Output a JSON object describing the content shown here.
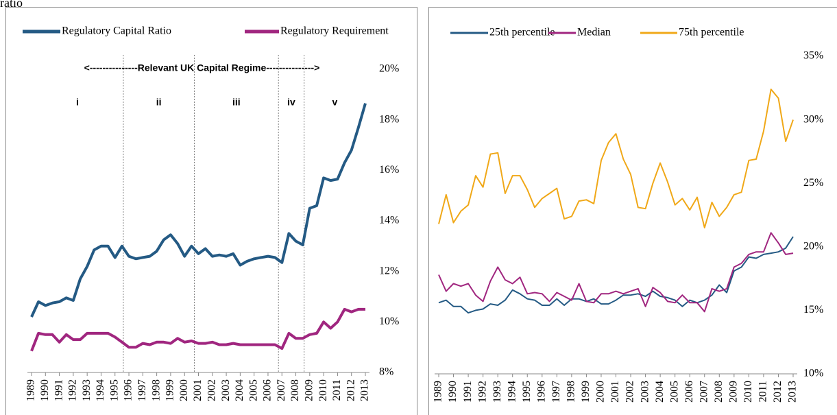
{
  "header": "ratio",
  "chart_data": [
    {
      "type": "line",
      "annotation": "<---------------Relevant UK Capital Regime--------------->",
      "regimes": [
        "i",
        "ii",
        "iii",
        "iv",
        "v"
      ],
      "dividers": [
        13.2,
        23.4,
        35.5,
        39.2
      ],
      "categories": [
        "1989",
        null,
        "1990",
        null,
        "1991",
        null,
        "1992",
        null,
        "1993",
        null,
        "1994",
        null,
        "1995",
        null,
        "1996",
        null,
        "1997",
        null,
        "1998",
        null,
        "1999",
        null,
        "2000",
        null,
        "2001",
        null,
        "2002",
        null,
        "2003",
        null,
        "2004",
        null,
        "2005",
        null,
        "2006",
        null,
        "2007",
        null,
        "2008",
        null,
        "2009",
        null,
        "2010",
        null,
        "2011",
        null,
        "2012",
        null,
        "2013"
      ],
      "series": [
        {
          "name": "Regulatory Capital Ratio",
          "color": "#245a84",
          "width": 4,
          "values": [
            10.2,
            10.8,
            10.65,
            10.75,
            10.8,
            10.95,
            10.85,
            11.7,
            12.2,
            12.85,
            13.0,
            13.0,
            12.55,
            13.0,
            12.6,
            12.5,
            12.55,
            12.6,
            12.8,
            13.25,
            13.45,
            13.1,
            12.6,
            13.0,
            12.7,
            12.9,
            12.6,
            12.65,
            12.6,
            12.7,
            12.25,
            12.4,
            12.5,
            12.55,
            12.6,
            12.55,
            12.35,
            13.5,
            13.2,
            13.05,
            14.5,
            14.6,
            15.7,
            15.6,
            15.65,
            16.3,
            16.8,
            17.7,
            18.65
          ]
        },
        {
          "name": "Regulatory Requirement",
          "color": "#a0267f",
          "width": 4,
          "values": [
            8.85,
            9.55,
            9.5,
            9.5,
            9.2,
            9.5,
            9.3,
            9.3,
            9.55,
            9.55,
            9.55,
            9.55,
            9.4,
            9.2,
            9.0,
            9.0,
            9.15,
            9.1,
            9.2,
            9.2,
            9.15,
            9.35,
            9.2,
            9.25,
            9.15,
            9.15,
            9.2,
            9.1,
            9.1,
            9.15,
            9.1,
            9.1,
            9.1,
            9.1,
            9.1,
            9.1,
            8.95,
            9.55,
            9.35,
            9.35,
            9.5,
            9.55,
            10.0,
            9.75,
            10.0,
            10.5,
            10.4,
            10.5,
            10.5
          ]
        }
      ],
      "ylim": [
        8,
        20
      ],
      "yticks": [
        {
          "value": 8,
          "label": "8%"
        },
        {
          "value": 10,
          "label": "10%"
        },
        {
          "value": 12,
          "label": "12%"
        },
        {
          "value": 14,
          "label": "14%"
        },
        {
          "value": 16,
          "label": "16%"
        },
        {
          "value": 18,
          "label": "18%"
        },
        {
          "value": 20,
          "label": "20%"
        }
      ]
    },
    {
      "type": "line",
      "categories": [
        "1989",
        null,
        "1990",
        null,
        "1991",
        null,
        "1992",
        null,
        "1993",
        null,
        "1994",
        null,
        "1995",
        null,
        "1996",
        null,
        "1997",
        null,
        "1998",
        null,
        "1999",
        null,
        "2000",
        null,
        "2001",
        null,
        "2002",
        null,
        "2003",
        null,
        "2004",
        null,
        "2005",
        null,
        "2006",
        null,
        "2007",
        null,
        "2008",
        null,
        "2009",
        null,
        "2010",
        null,
        "2011",
        null,
        "2012",
        null,
        "2013"
      ],
      "series": [
        {
          "name": "25th percentile",
          "color": "#245a84",
          "width": 2,
          "values": [
            15.6,
            15.8,
            15.3,
            15.3,
            14.8,
            15.0,
            15.1,
            15.5,
            15.4,
            15.8,
            16.6,
            16.3,
            15.9,
            15.8,
            15.4,
            15.4,
            15.9,
            15.4,
            15.9,
            15.9,
            15.7,
            15.9,
            15.5,
            15.5,
            15.8,
            16.2,
            16.2,
            16.3,
            16.1,
            16.5,
            16.1,
            16.0,
            15.8,
            15.3,
            15.8,
            15.6,
            15.8,
            16.2,
            17.0,
            16.4,
            18.1,
            18.4,
            19.2,
            19.1,
            19.4,
            19.5,
            19.6,
            19.9,
            20.8
          ]
        },
        {
          "name": "Median",
          "color": "#a0267f",
          "width": 2,
          "values": [
            17.8,
            16.5,
            17.1,
            16.9,
            17.1,
            16.2,
            15.7,
            17.3,
            18.4,
            17.4,
            17.1,
            17.6,
            16.3,
            16.4,
            16.3,
            15.7,
            16.4,
            16.1,
            15.8,
            17.1,
            15.7,
            15.6,
            16.3,
            16.3,
            16.5,
            16.3,
            16.5,
            16.7,
            15.3,
            16.8,
            16.4,
            15.7,
            15.6,
            16.2,
            15.6,
            15.6,
            14.9,
            16.7,
            16.5,
            16.7,
            18.4,
            18.7,
            19.4,
            19.6,
            19.6,
            21.1,
            20.3,
            19.4,
            19.5
          ]
        },
        {
          "name": "75th percentile",
          "color": "#f0a818",
          "width": 2,
          "values": [
            21.8,
            24.1,
            21.9,
            22.8,
            23.3,
            25.6,
            24.7,
            27.3,
            27.4,
            24.2,
            25.6,
            25.6,
            24.5,
            23.1,
            23.8,
            24.2,
            24.6,
            22.2,
            22.4,
            23.6,
            23.7,
            23.4,
            26.8,
            28.2,
            28.9,
            26.9,
            25.7,
            23.1,
            23.0,
            25.0,
            26.6,
            25.1,
            23.3,
            23.8,
            22.9,
            23.9,
            21.5,
            23.5,
            22.4,
            23.1,
            24.1,
            24.3,
            26.8,
            26.9,
            29.1,
            32.4,
            31.7,
            28.3,
            30.0
          ]
        }
      ],
      "ylim": [
        10,
        35
      ],
      "yticks": [
        {
          "value": 10,
          "label": "10%"
        },
        {
          "value": 15,
          "label": "15%"
        },
        {
          "value": 20,
          "label": "20%"
        },
        {
          "value": 25,
          "label": "25%"
        },
        {
          "value": 30,
          "label": "30%"
        },
        {
          "value": 35,
          "label": "35%"
        }
      ]
    }
  ]
}
